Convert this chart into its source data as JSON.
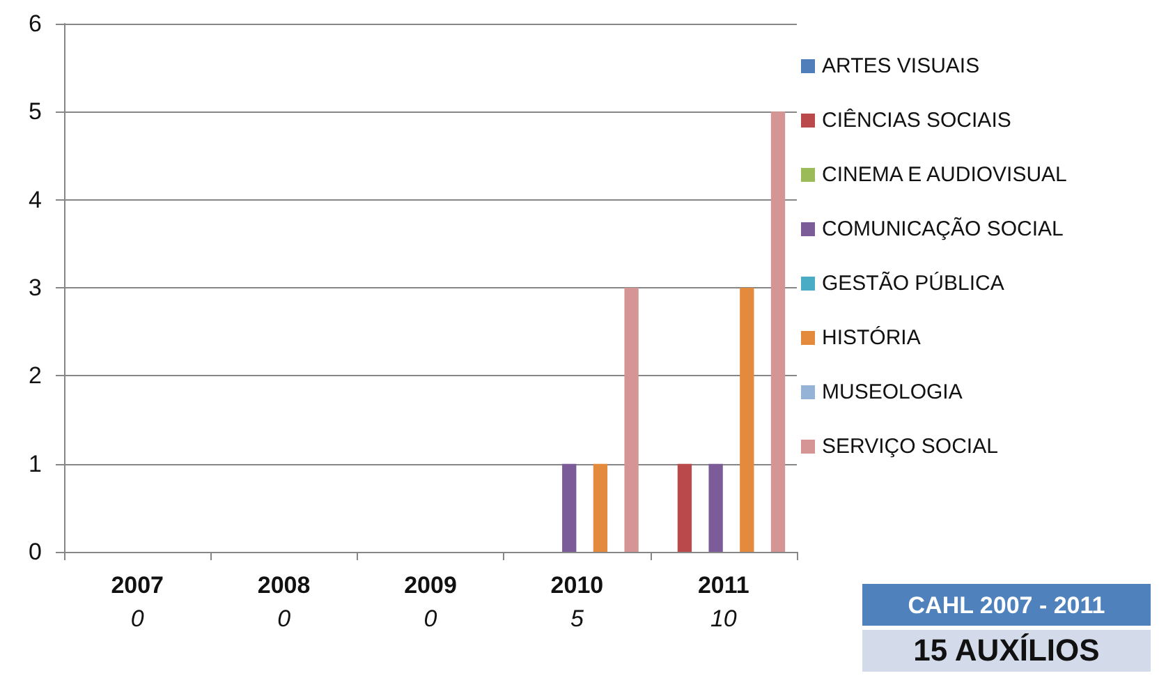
{
  "chart_data": {
    "type": "bar",
    "categories": [
      "2007",
      "2008",
      "2009",
      "2010",
      "2011"
    ],
    "totals": [
      "0",
      "0",
      "0",
      "5",
      "10"
    ],
    "series": [
      {
        "name": "ARTES VISUAIS",
        "color": "#4f7ebb",
        "values": [
          0,
          0,
          0,
          0,
          0
        ]
      },
      {
        "name": "CIÊNCIAS SOCIAIS",
        "color": "#b9494a",
        "values": [
          0,
          0,
          0,
          0,
          1
        ]
      },
      {
        "name": "CINEMA E AUDIOVISUAL",
        "color": "#9bbb59",
        "values": [
          0,
          0,
          0,
          0,
          0
        ]
      },
      {
        "name": "COMUNICAÇÃO SOCIAL",
        "color": "#7b5c99",
        "values": [
          0,
          0,
          0,
          1,
          1
        ]
      },
      {
        "name": "GESTÃO PÚBLICA",
        "color": "#4bacc6",
        "values": [
          0,
          0,
          0,
          0,
          0
        ]
      },
      {
        "name": "HISTÓRIA",
        "color": "#e38a3c",
        "values": [
          0,
          0,
          0,
          1,
          3
        ]
      },
      {
        "name": "MUSEOLOGIA",
        "color": "#95b3d7",
        "values": [
          0,
          0,
          0,
          0,
          0
        ]
      },
      {
        "name": "SERVIÇO SOCIAL",
        "color": "#d69595",
        "values": [
          0,
          0,
          0,
          3,
          5
        ]
      }
    ],
    "ylim": [
      0,
      6
    ],
    "yticks": [
      0,
      1,
      2,
      3,
      4,
      5,
      6
    ],
    "grid": "y",
    "legend": "right",
    "annotations": [
      "CAHL 2007 - 2011",
      "15 AUXÍLIOS"
    ]
  }
}
